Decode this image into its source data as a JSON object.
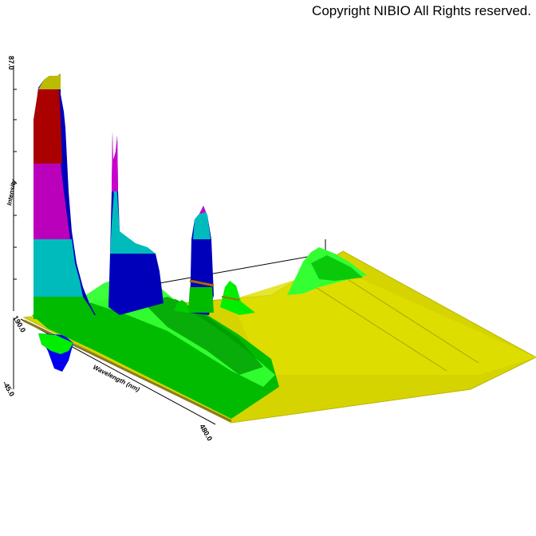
{
  "copyright": "Copyright NIBIO All Rights reserved.",
  "chart_data": {
    "type": "surface",
    "title": "",
    "xlabel": "Wavelength (nm)",
    "ylabel": "",
    "zlabel": "Intensity",
    "x_range": [
      190.0,
      480.0
    ],
    "z_range": [
      -45.0,
      87.0
    ],
    "tick_labels": {
      "x_start": "190.0",
      "x_end": "480.0",
      "z_top": "87.0",
      "z_bottom": "-45.0"
    },
    "color_bands": [
      "#0000cc",
      "#00cccc",
      "#cc00cc",
      "#cc0000",
      "#cccc00",
      "#00cc00",
      "#00ff00"
    ],
    "ridges": [
      {
        "wavelength": 195,
        "intensity": 87
      },
      {
        "wavelength": 215,
        "intensity": 58
      },
      {
        "wavelength": 238,
        "intensity": 30
      },
      {
        "wavelength": 262,
        "intensity": 42
      },
      {
        "wavelength": 282,
        "intensity": 18
      },
      {
        "wavelength": 330,
        "intensity": 20
      }
    ]
  }
}
